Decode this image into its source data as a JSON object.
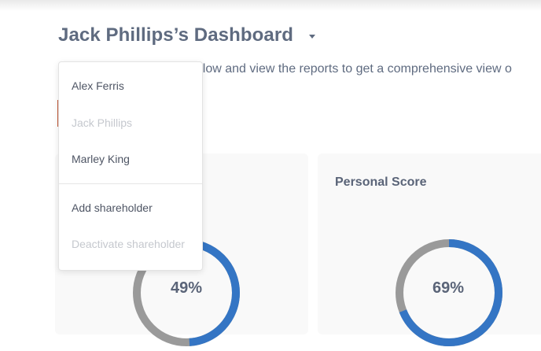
{
  "header": {
    "title": "Jack Phillips’s Dashboard",
    "intro": "below and view the reports to get a comprehensive view o"
  },
  "colors": {
    "accent": "#c25534",
    "donut_fill": "#3475c4",
    "donut_track": "#9a9a9a"
  },
  "cards": [
    {
      "title": "",
      "value": 49,
      "label": "49%"
    },
    {
      "title": "Personal Score",
      "value": 69,
      "label": "69%"
    }
  ],
  "shareholder_menu": {
    "items": [
      {
        "label": "Alex Ferris",
        "disabled": false
      },
      {
        "label": "Jack Phillips",
        "disabled": true
      },
      {
        "label": "Marley King",
        "disabled": false
      }
    ],
    "actions": [
      {
        "label": "Add shareholder",
        "disabled": false
      },
      {
        "label": "Deactivate shareholder",
        "disabled": true
      }
    ]
  }
}
